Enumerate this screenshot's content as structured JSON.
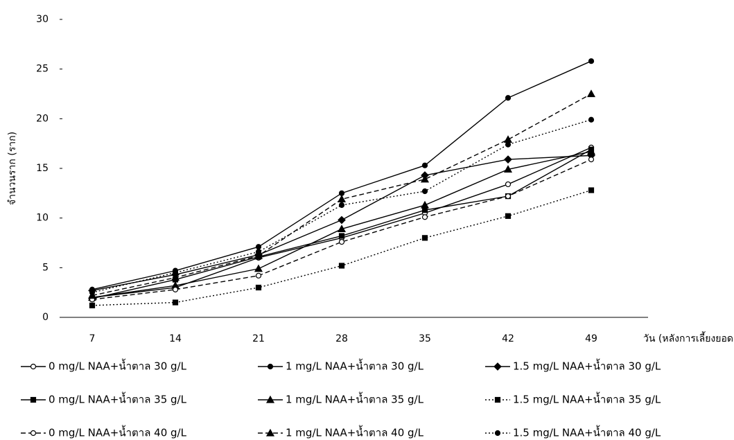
{
  "chart_data": {
    "type": "line",
    "y_label": "จำนวนราก (ราก)",
    "x_label": "วัน (หลังการเลี้ยงยอด)",
    "categories": [
      "7",
      "14",
      "21",
      "28",
      "35",
      "42",
      "49"
    ],
    "ylim": [
      0,
      30
    ],
    "yticks": [
      0,
      5,
      10,
      15,
      20,
      25,
      30
    ],
    "series": [
      {
        "name": "0 mg/L NAA+น้ำตาล 30 g/L",
        "color": "#000000",
        "dash": "solid",
        "marker": "circle-open",
        "values": [
          2.0,
          3.0,
          6.0,
          8.0,
          10.5,
          13.4,
          17.1
        ]
      },
      {
        "name": "1 mg/L NAA+น้ำตาล 30 g/L",
        "color": "#000000",
        "dash": "solid",
        "marker": "circle",
        "values": [
          2.8,
          4.7,
          7.1,
          12.5,
          15.3,
          22.1,
          25.8
        ]
      },
      {
        "name": "1.5 mg/L NAA+น้ำตาล 30 g/L",
        "color": "#000000",
        "dash": "solid",
        "marker": "diamond",
        "values": [
          2.7,
          4.3,
          6.3,
          9.8,
          14.3,
          15.9,
          16.3
        ]
      },
      {
        "name": "0 mg/L NAA+น้ำตาล 35 g/L",
        "color": "#000000",
        "dash": "solid",
        "marker": "square",
        "values": [
          1.9,
          3.8,
          6.1,
          8.2,
          10.8,
          12.2,
          16.9
        ]
      },
      {
        "name": "1 mg/L NAA+น้ำตาล 35 g/L",
        "color": "#000000",
        "dash": "solid",
        "marker": "triangle",
        "values": [
          2.0,
          3.2,
          4.9,
          8.9,
          11.3,
          14.9,
          16.7
        ]
      },
      {
        "name": "1.5 mg/L NAA+น้ำตาล 35 g/L",
        "color": "#000000",
        "dash": "dotted",
        "marker": "square",
        "values": [
          1.2,
          1.5,
          3.0,
          5.2,
          8.0,
          10.2,
          12.8
        ]
      },
      {
        "name": "0 mg/L NAA+น้ำตาล 40 g/L",
        "color": "#000000",
        "dash": "dashed",
        "marker": "circle-open",
        "values": [
          1.8,
          2.8,
          4.2,
          7.6,
          10.1,
          12.2,
          15.9
        ]
      },
      {
        "name": "1 mg/L NAA+น้ำตาล 40 g/L",
        "color": "#000000",
        "dash": "dashed",
        "marker": "triangle",
        "values": [
          2.2,
          4.0,
          6.2,
          11.9,
          13.9,
          17.9,
          22.5
        ]
      },
      {
        "name": "1.5 mg/L NAA+น้ำตาล 40 g/L",
        "color": "#000000",
        "dash": "dotted",
        "marker": "circle",
        "values": [
          2.5,
          4.5,
          6.6,
          11.3,
          12.7,
          17.4,
          19.9
        ]
      }
    ]
  }
}
